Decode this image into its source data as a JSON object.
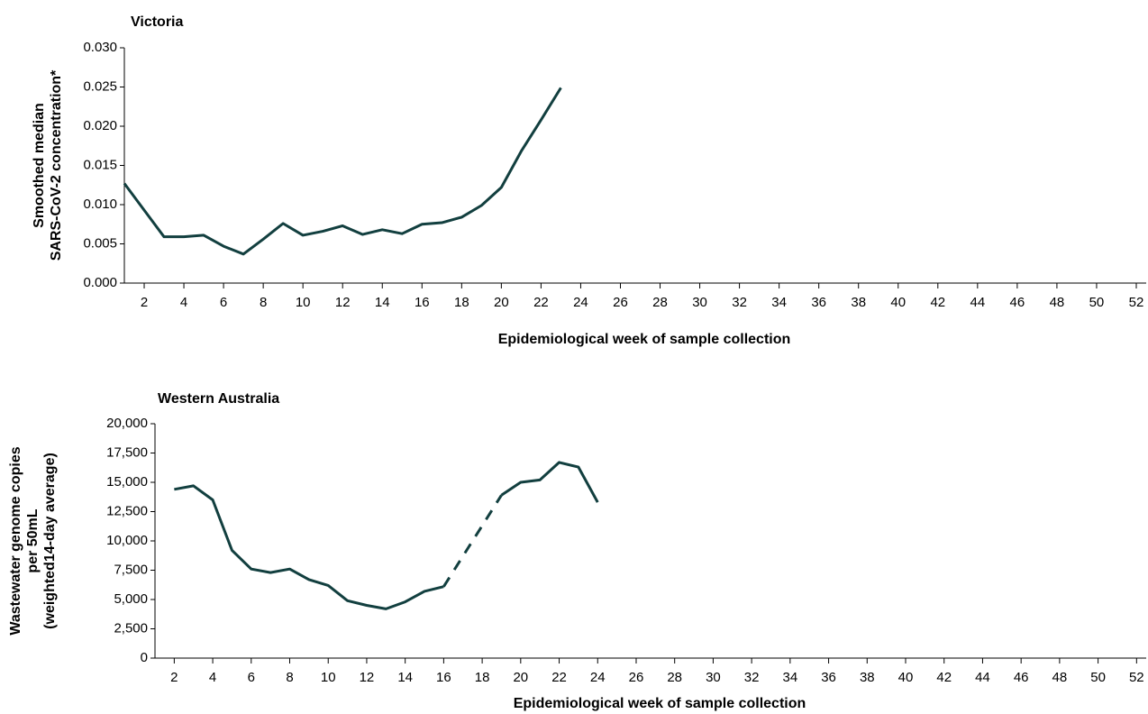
{
  "chart_data": [
    {
      "type": "line",
      "title": "Victoria",
      "ylabel": [
        "Smoothed median",
        "SARS-CoV-2 concentration*"
      ],
      "xlabel": "Epidemiological week of sample collection",
      "xlim": [
        1,
        52.5
      ],
      "xticks": [
        2,
        4,
        6,
        8,
        10,
        12,
        14,
        16,
        18,
        20,
        22,
        24,
        26,
        28,
        30,
        32,
        34,
        36,
        38,
        40,
        42,
        44,
        46,
        48,
        50,
        52
      ],
      "ylim": [
        0,
        0.03
      ],
      "yticks": [
        {
          "value": 0,
          "label": "0.000"
        },
        {
          "value": 0.005,
          "label": "0.005"
        },
        {
          "value": 0.01,
          "label": "0.010"
        },
        {
          "value": 0.015,
          "label": "0.015"
        },
        {
          "value": 0.02,
          "label": "0.020"
        },
        {
          "value": 0.025,
          "label": "0.025"
        },
        {
          "value": 0.03,
          "label": "0.030"
        }
      ],
      "x": [
        1,
        2,
        3,
        4,
        5,
        6,
        7,
        8,
        9,
        10,
        11,
        12,
        13,
        14,
        15,
        16,
        17,
        18,
        19,
        20,
        21,
        22,
        23
      ],
      "series": [
        {
          "color": "#123f3f",
          "values": [
            0.0127,
            0.0093,
            0.0059,
            0.0059,
            0.0061,
            0.0047,
            0.0037,
            0.0056,
            0.0076,
            0.0061,
            0.0066,
            0.0073,
            0.0062,
            0.0068,
            0.0063,
            0.0075,
            0.0077,
            0.0084,
            0.0099,
            0.0122,
            0.0168,
            0.0208,
            0.0249
          ]
        }
      ]
    },
    {
      "type": "line",
      "title": "Western Australia",
      "ylabel": [
        "Wastewater genome copies",
        "per 50mL",
        "(weighted14-day average)"
      ],
      "xlabel": "Epidemiological week of sample collection",
      "xlim": [
        1,
        52.5
      ],
      "xticks": [
        2,
        4,
        6,
        8,
        10,
        12,
        14,
        16,
        18,
        20,
        22,
        24,
        26,
        28,
        30,
        32,
        34,
        36,
        38,
        40,
        42,
        44,
        46,
        48,
        50,
        52
      ],
      "ylim": [
        0,
        20000
      ],
      "yticks": [
        0,
        {
          "value": 2500,
          "label": "2,500"
        },
        {
          "value": 5000,
          "label": "5,000"
        },
        {
          "value": 7500,
          "label": "7,500"
        },
        {
          "value": 10000,
          "label": "10,000"
        },
        {
          "value": 12500,
          "label": "12,500"
        },
        {
          "value": 15000,
          "label": "15,000"
        },
        {
          "value": 17500,
          "label": "17,500"
        },
        {
          "value": 20000,
          "label": "20,000"
        }
      ],
      "x": [
        2,
        3,
        4,
        5,
        6,
        7,
        8,
        9,
        10,
        11,
        12,
        13,
        14,
        15,
        16,
        17,
        18,
        19,
        20,
        21,
        22,
        23,
        24
      ],
      "gap_line": "dashed",
      "series": [
        {
          "color": "#123f3f",
          "values": [
            14400,
            14700,
            13500,
            9200,
            7600,
            7300,
            7600,
            6700,
            6200,
            4900,
            4500,
            4200,
            4800,
            5700,
            6100,
            null,
            null,
            13900,
            15000,
            15200,
            16700,
            16300,
            13300
          ]
        }
      ]
    }
  ]
}
